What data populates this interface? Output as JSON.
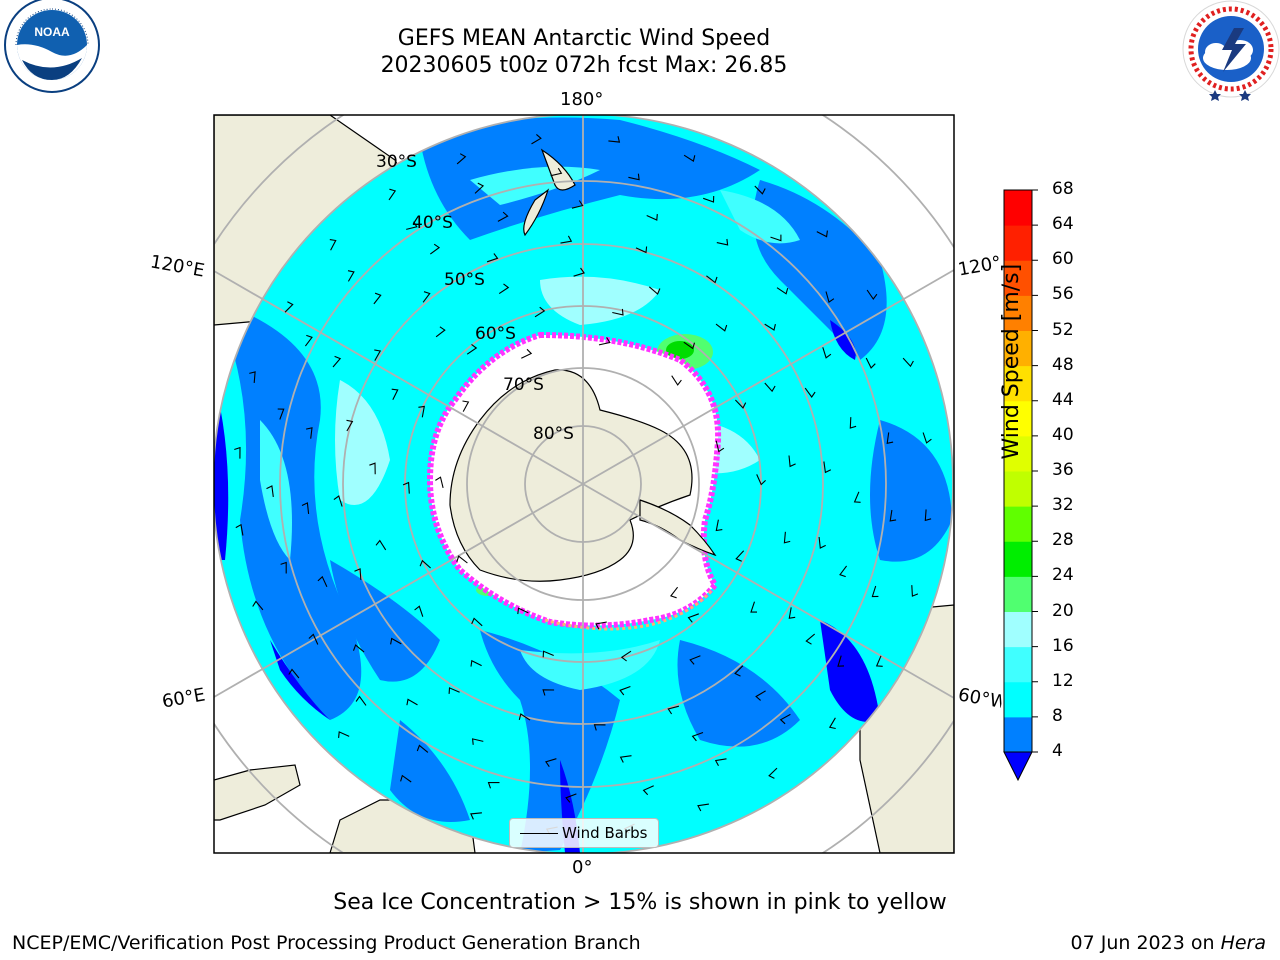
{
  "title": {
    "line1": "GEFS MEAN Antarctic Wind Speed",
    "line2": "20230605 t00z 072h fcst   Max: 26.85"
  },
  "map": {
    "longitude_labels": {
      "top": "180°",
      "bottom": "0°",
      "upper_left": "120°E",
      "upper_right": "120°W",
      "lower_left": "60°E",
      "lower_right": "60°W"
    },
    "latitude_labels": [
      "30°S",
      "40°S",
      "50°S",
      "60°S",
      "70°S",
      "80°S"
    ],
    "legend_label": "Wind Barbs",
    "colors": {
      "land": "#eeeddb",
      "ocean_low": "#0000ff",
      "ocean_4_8": "#0080ff",
      "ocean_8_12": "#00ffff",
      "ocean_12_16": "#40ffff",
      "ocean_16_20": "#a0ffff",
      "wind_20_24": "#50ff70",
      "wind_24_28": "#00dd00",
      "sea_ice_edge": "#ff33ff"
    }
  },
  "colorbar": {
    "title": "Wind Speed [m/s]",
    "ticks": [
      "4",
      "8",
      "12",
      "16",
      "20",
      "24",
      "28",
      "32",
      "36",
      "40",
      "44",
      "48",
      "52",
      "56",
      "60",
      "64",
      "68"
    ],
    "colors": [
      "#0080ff",
      "#00ffff",
      "#40ffff",
      "#a0ffff",
      "#50ff70",
      "#00ee00",
      "#60ff00",
      "#c0ff00",
      "#e0ff00",
      "#ffff00",
      "#ffe000",
      "#ffb000",
      "#ff8000",
      "#ff5000",
      "#ff2000",
      "#ff0000"
    ],
    "under_color": "#0000ff"
  },
  "caption": "Sea Ice Concentration > 15% is shown in pink to yellow",
  "footer": {
    "left": "NCEP/EMC/Verification Post Processing Product Generation Branch",
    "right_date": "07 Jun 2023 on ",
    "right_host": "Hera"
  },
  "logos": {
    "noaa": "NOAA",
    "nws_ring": "NATIONAL WEATHER SERVICE"
  }
}
